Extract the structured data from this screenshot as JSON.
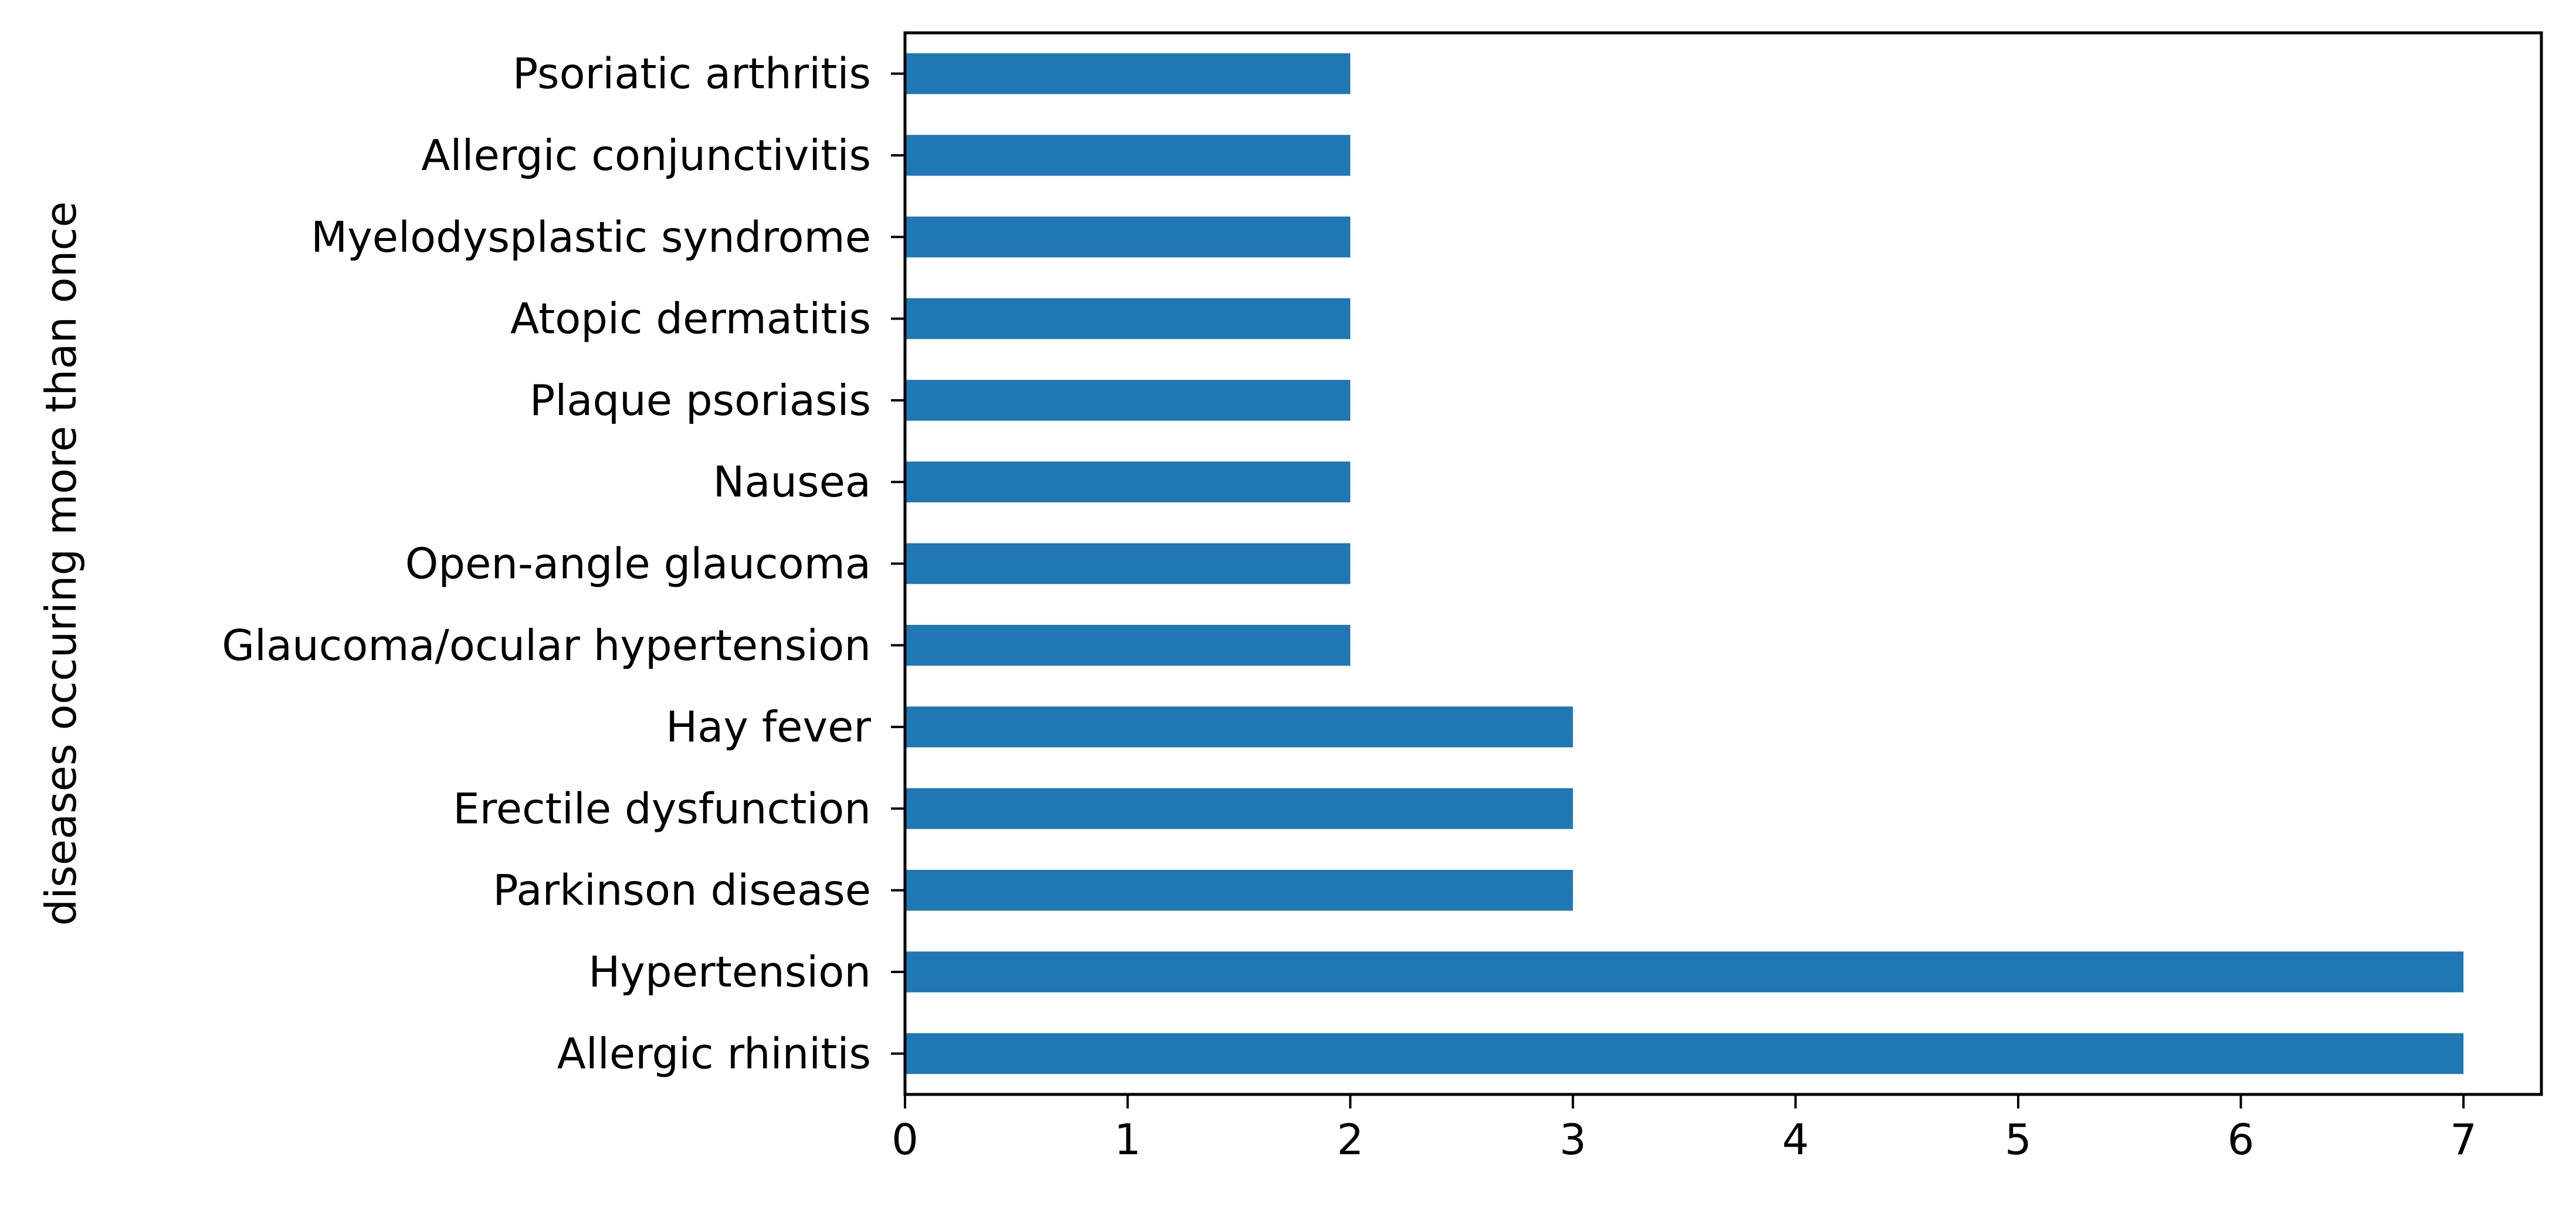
{
  "chart_data": {
    "type": "bar",
    "orientation": "horizontal",
    "title": "",
    "xlabel": "",
    "ylabel": "diseases occuring more than once",
    "categories": [
      "Allergic rhinitis",
      "Hypertension",
      "Parkinson disease",
      "Erectile dysfunction",
      "Hay fever",
      "Glaucoma/ocular hypertension",
      "Open-angle glaucoma",
      "Nausea",
      "Plaque psoriasis",
      "Atopic dermatitis",
      "Myelodysplastic syndrome",
      "Allergic conjunctivitis",
      "Psoriatic arthritis"
    ],
    "values": [
      7,
      7,
      3,
      3,
      3,
      2,
      2,
      2,
      2,
      2,
      2,
      2,
      2
    ],
    "xlim": [
      0,
      7.35
    ],
    "xticks": [
      0,
      1,
      2,
      3,
      4,
      5,
      6,
      7
    ],
    "bar_color": "#1f77b4",
    "grid": false,
    "legend": "none"
  }
}
